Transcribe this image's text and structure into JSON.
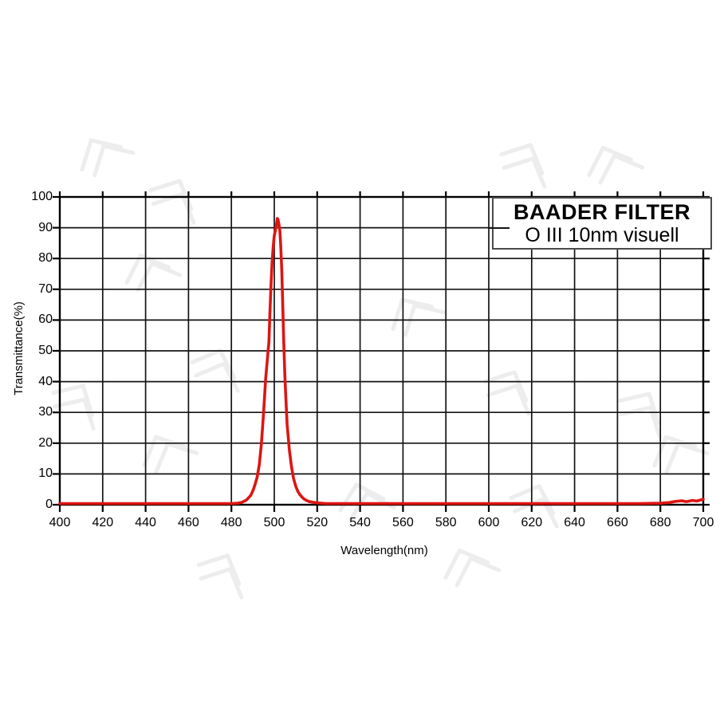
{
  "title_box": {
    "line1": "BAADER FILTER",
    "line2": "O III 10nm visuell"
  },
  "axes": {
    "x_label": "Wavelength(nm)",
    "y_label": "Transmittance(%)",
    "x_ticks": [
      400,
      420,
      440,
      460,
      480,
      500,
      520,
      540,
      560,
      580,
      600,
      620,
      640,
      660,
      680,
      700
    ],
    "y_ticks": [
      0,
      10,
      20,
      30,
      40,
      50,
      60,
      70,
      80,
      90,
      100
    ]
  },
  "colors": {
    "background": "#ffffff",
    "grid": "#141414",
    "border": "#000000",
    "curve": "#dd1512",
    "box_border": "#4a4a4a",
    "watermark": "#ededed",
    "text": "#000000"
  },
  "chart_data": {
    "type": "line",
    "title": "BAADER FILTER O III 10nm visuell",
    "xlabel": "Wavelength(nm)",
    "ylabel": "Transmittance(%)",
    "xlim": [
      400,
      700
    ],
    "ylim": [
      0,
      100
    ],
    "x_tick_step": 20,
    "y_tick_step": 10,
    "grid": true,
    "legend_position": "none",
    "series": [
      {
        "name": "O III 10nm visuell transmission",
        "color": "#dd1512",
        "points": [
          [
            400,
            0.4
          ],
          [
            420,
            0.4
          ],
          [
            440,
            0.4
          ],
          [
            460,
            0.4
          ],
          [
            475,
            0.4
          ],
          [
            480,
            0.4
          ],
          [
            483,
            0.5
          ],
          [
            485,
            0.8
          ],
          [
            487,
            1.5
          ],
          [
            489,
            3
          ],
          [
            490,
            4.5
          ],
          [
            491,
            6.5
          ],
          [
            492,
            9
          ],
          [
            493,
            13
          ],
          [
            494,
            20
          ],
          [
            495,
            30
          ],
          [
            496,
            41
          ],
          [
            497,
            49
          ],
          [
            497.5,
            53
          ],
          [
            498,
            63
          ],
          [
            498.5,
            72
          ],
          [
            499,
            79
          ],
          [
            499.5,
            84
          ],
          [
            500,
            87.5
          ],
          [
            500.5,
            89
          ],
          [
            501,
            91
          ],
          [
            501.4,
            93
          ],
          [
            501.8,
            92.5
          ],
          [
            502.2,
            91
          ],
          [
            502.6,
            89
          ],
          [
            503,
            84
          ],
          [
            503.5,
            76
          ],
          [
            504,
            63
          ],
          [
            504.3,
            55
          ],
          [
            504.7,
            47
          ],
          [
            505,
            41
          ],
          [
            505.5,
            33
          ],
          [
            506,
            26
          ],
          [
            506.5,
            22
          ],
          [
            507,
            18
          ],
          [
            508,
            12.5
          ],
          [
            509,
            8.5
          ],
          [
            510,
            6
          ],
          [
            511,
            4.3
          ],
          [
            512,
            3.2
          ],
          [
            513,
            2.4
          ],
          [
            514,
            1.8
          ],
          [
            515,
            1.4
          ],
          [
            516,
            1.1
          ],
          [
            518,
            0.8
          ],
          [
            520,
            0.6
          ],
          [
            524,
            0.4
          ],
          [
            530,
            0.4
          ],
          [
            560,
            0.4
          ],
          [
            600,
            0.4
          ],
          [
            640,
            0.4
          ],
          [
            670,
            0.4
          ],
          [
            680,
            0.5
          ],
          [
            684,
            0.7
          ],
          [
            687,
            1.1
          ],
          [
            690,
            1.3
          ],
          [
            692,
            1.0
          ],
          [
            695,
            1.4
          ],
          [
            697,
            1.2
          ],
          [
            700,
            1.8
          ]
        ]
      }
    ]
  }
}
